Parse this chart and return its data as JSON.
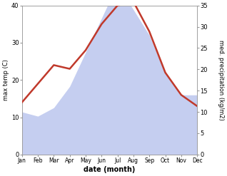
{
  "months": [
    "Jan",
    "Feb",
    "Mar",
    "Apr",
    "May",
    "Jun",
    "Jul",
    "Aug",
    "Sep",
    "Oct",
    "Nov",
    "Dec"
  ],
  "temperature": [
    14,
    19,
    24,
    23,
    28,
    35,
    40,
    41,
    33,
    22,
    16,
    13
  ],
  "precipitation": [
    10,
    9,
    11,
    16,
    24,
    32,
    40,
    34,
    28,
    19,
    14,
    14
  ],
  "temp_color": "#c0392b",
  "precip_color_fill": "#c5cef0",
  "title": "",
  "xlabel": "date (month)",
  "ylabel_left": "max temp (C)",
  "ylabel_right": "med. precipitation (kg/m2)",
  "ylim_left": [
    0,
    40
  ],
  "ylim_right": [
    0,
    35
  ],
  "yticks_left": [
    0,
    10,
    20,
    30,
    40
  ],
  "yticks_right": [
    0,
    5,
    10,
    15,
    20,
    25,
    30,
    35
  ],
  "temp_linewidth": 1.8,
  "bg_color": "#ffffff"
}
